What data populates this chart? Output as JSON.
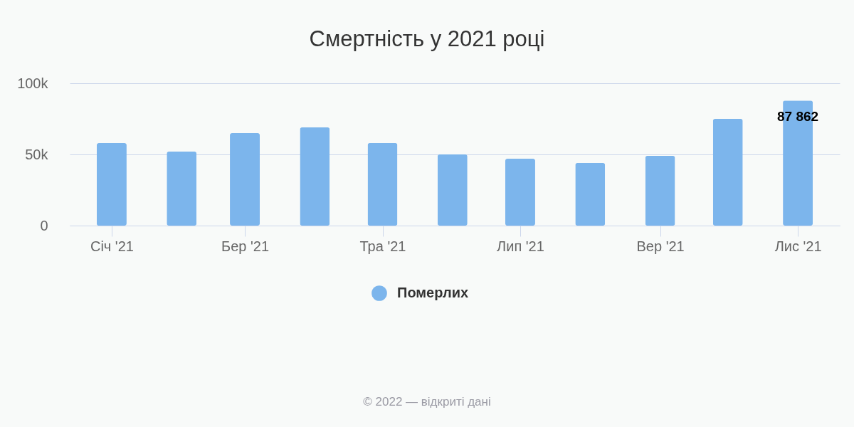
{
  "chart_data": {
    "type": "bar",
    "title": "Смертність у 2021 році",
    "x": [
      "2021-01",
      "2021-02",
      "2021-03",
      "2021-04",
      "2021-05",
      "2021-06",
      "2021-07",
      "2021-08",
      "2021-09",
      "2021-10",
      "2021-11"
    ],
    "series": [
      {
        "name": "Померлих",
        "color": "#7cb5ec",
        "values": [
          58000,
          52000,
          65000,
          69000,
          58000,
          50000,
          47000,
          44000,
          49000,
          75000,
          87862
        ],
        "value_labels": [
          null,
          null,
          null,
          null,
          null,
          null,
          null,
          null,
          null,
          null,
          "87 862"
        ]
      }
    ],
    "xlim": [
      "2020-12-15",
      "2021-11-18"
    ],
    "xticks": [
      {
        "value": "2021-01",
        "label": "Січ '21"
      },
      {
        "value": "2021-03",
        "label": "Бер '21"
      },
      {
        "value": "2021-05",
        "label": "Тра '21"
      },
      {
        "value": "2021-07",
        "label": "Лип '21"
      },
      {
        "value": "2021-09",
        "label": "Вер '21"
      },
      {
        "value": "2021-11",
        "label": "Лис '21"
      }
    ],
    "ylim": [
      0,
      100000
    ],
    "yticks": [
      0,
      {
        "value": 50000,
        "label": "50k"
      },
      {
        "value": 100000,
        "label": "100k"
      }
    ],
    "grid": "y",
    "legend": "bottom",
    "annotations": [
      "© 2022 — відкриті дані"
    ]
  }
}
